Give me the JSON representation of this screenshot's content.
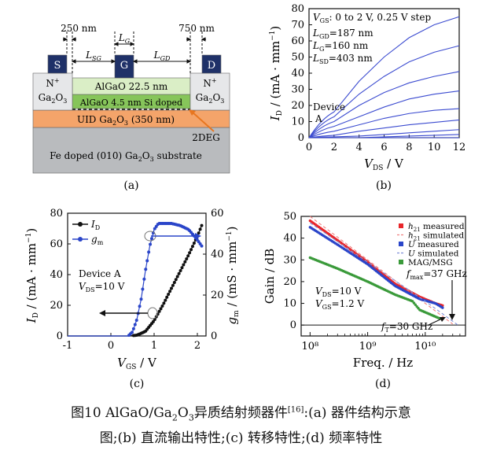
{
  "panel_a": {
    "dim_left": "250 nm",
    "dim_right": "750 nm",
    "label_lg": "L",
    "label_lg_sub": "G",
    "label_lsg": "L",
    "label_lsg_sub": "SG",
    "label_lgd": "L",
    "label_lgd_sub": "GD",
    "contact_s": "S",
    "contact_g": "G",
    "contact_d": "D",
    "n_plus": "N",
    "n_plus_sup": "+",
    "ga2o3": "Ga",
    "layer_algao_top": "AlGaO 22.5 nm",
    "layer_algao_doped": "AlGaO 4.5 nm Si doped",
    "layer_uid": "UID Ga",
    "layer_uid_tail": " (350 nm)",
    "label_2deg": "2DEG",
    "layer_substrate": "Fe doped (010) Ga",
    "layer_substrate_tail": " substrate",
    "panel_label": "(a)",
    "colors": {
      "contact": "#1f3168",
      "nplus": "#e6e7e9",
      "algao_top": "#daeec6",
      "algao_doped": "#86c55a",
      "uid": "#f4a46a",
      "substrate": "#b9bbbe",
      "arrow": "#e8761f"
    }
  },
  "panel_b_text": {
    "legend1": "V",
    "legend1_sub": "GS",
    "legend1_tail": ": 0 to 2 V, 0.25 V step",
    "legend2": "L",
    "legend2_sub": "GD",
    "legend2_tail": "=187 nm",
    "legend3": "L",
    "legend3_sub": "G",
    "legend3_tail": "=160 nm",
    "legend4": "L",
    "legend4_sub": "SD",
    "legend4_tail": "=403 nm",
    "device": "Device",
    "device_tail": "A",
    "panel_label": "(b)"
  },
  "panel_c_text": {
    "legend_id": "I",
    "legend_id_sub": "D",
    "legend_gm": "g",
    "legend_gm_sub": "m",
    "device": "Device A",
    "vds": "V",
    "vds_sub": "DS",
    "vds_tail": "=10 V",
    "panel_label": "(c)"
  },
  "panel_d_text": {
    "legend": [
      {
        "label": "h",
        "sub": "21",
        "tail": " measured",
        "style": "dot",
        "color": "#e8262a"
      },
      {
        "label": "h",
        "sub": "21",
        "tail": " simulated",
        "style": "dash",
        "color": "#f08080"
      },
      {
        "label": "U",
        "sub": "",
        "tail": " measured",
        "style": "dot",
        "color": "#2a45c9"
      },
      {
        "label": "U",
        "sub": "",
        "tail": " simulated",
        "style": "dash",
        "color": "#7f8fd8"
      },
      {
        "label": "MAG/MSG",
        "sub": "",
        "tail": "",
        "style": "dot",
        "color": "#3a9a3a"
      }
    ],
    "vds": "V",
    "vds_sub": "DS",
    "vds_tail": "=10 V",
    "vgs": "V",
    "vgs_sub": "GS",
    "vgs_tail": "=1.2 V",
    "fmax": "f",
    "fmax_sub": "max",
    "fmax_tail": "=37 GHz",
    "ft": "f",
    "ft_sub": "T",
    "ft_tail": "=30 GHz",
    "panel_label": "(d)"
  },
  "chart_data": [
    {
      "type": "line",
      "panel": "b",
      "title": "",
      "xlabel": "V_DS / V",
      "ylabel": "I_D / (mA · mm⁻¹)",
      "xlim": [
        0,
        12
      ],
      "ylim": [
        0,
        80
      ],
      "xticks": [
        "0",
        "2",
        "4",
        "6",
        "8",
        "10",
        "12"
      ],
      "yticks": [
        "0",
        "10",
        "20",
        "30",
        "40",
        "50",
        "60",
        "70",
        "80"
      ],
      "series": [
        {
          "name": "VGS=0 V",
          "x": [
            0,
            2,
            4,
            6,
            8,
            10,
            12
          ],
          "values": [
            0,
            0,
            0,
            0,
            0,
            0,
            0
          ]
        },
        {
          "name": "VGS=0.25 V",
          "x": [
            0,
            2,
            4,
            6,
            8,
            10,
            12
          ],
          "values": [
            0,
            0,
            0,
            0.5,
            1,
            1.5,
            2
          ]
        },
        {
          "name": "VGS=0.5 V",
          "x": [
            0,
            2,
            4,
            6,
            8,
            10,
            12
          ],
          "values": [
            0,
            0.5,
            1,
            2,
            3,
            4,
            5
          ]
        },
        {
          "name": "VGS=0.75 V",
          "x": [
            0,
            2,
            4,
            6,
            8,
            10,
            12
          ],
          "values": [
            0,
            1.5,
            4,
            6,
            8,
            9.5,
            11
          ]
        },
        {
          "name": "VGS=1.0 V",
          "x": [
            0,
            2,
            4,
            6,
            8,
            10,
            12
          ],
          "values": [
            0,
            4,
            8,
            12,
            15,
            17,
            18
          ]
        },
        {
          "name": "VGS=1.25 V",
          "x": [
            0,
            2,
            4,
            6,
            8,
            10,
            12
          ],
          "values": [
            0,
            7,
            13,
            19,
            24,
            27,
            29
          ]
        },
        {
          "name": "VGS=1.5 V",
          "x": [
            0,
            2,
            4,
            6,
            8,
            10,
            12
          ],
          "values": [
            0,
            10,
            20,
            28,
            34,
            38,
            41
          ]
        },
        {
          "name": "VGS=1.75 V",
          "x": [
            0,
            2,
            4,
            6,
            8,
            10,
            12
          ],
          "values": [
            0,
            13,
            27,
            38,
            47,
            53,
            57
          ]
        },
        {
          "name": "VGS=2.0 V",
          "x": [
            0,
            2,
            4,
            6,
            8,
            10,
            12
          ],
          "values": [
            0,
            16,
            35,
            50,
            62,
            70,
            75
          ]
        }
      ]
    },
    {
      "type": "scatter",
      "panel": "c",
      "title": "",
      "xlabel": "V_GS / V",
      "ylabel": "I_D / (mA · mm⁻¹)",
      "y2label": "g_m / (mS · mm⁻¹)",
      "xlim": [
        -1,
        2.2
      ],
      "ylim": [
        0,
        80
      ],
      "y2lim": [
        0,
        60
      ],
      "xticks": [
        "-1",
        "0",
        "1",
        "2"
      ],
      "yticks": [
        "0",
        "20",
        "40",
        "60",
        "80"
      ],
      "y2ticks": [
        "0",
        "20",
        "40",
        "60"
      ],
      "series": [
        {
          "name": "I_D",
          "axis": "left",
          "x": [
            -1,
            0.4,
            0.6,
            0.8,
            1.0,
            1.2,
            1.4,
            1.6,
            1.8,
            2.0,
            2.1
          ],
          "values": [
            0,
            0,
            0.5,
            3,
            10,
            20,
            31,
            42,
            53,
            65,
            72
          ]
        },
        {
          "name": "g_m",
          "axis": "right",
          "x": [
            -1,
            0.4,
            0.5,
            0.6,
            0.7,
            0.8,
            0.9,
            1.0,
            1.1,
            1.2,
            1.4,
            1.6,
            1.8,
            2.0,
            2.1
          ],
          "values": [
            0,
            0,
            2,
            8,
            18,
            32,
            44,
            52,
            55,
            55,
            55,
            54,
            52,
            47,
            44
          ]
        }
      ]
    },
    {
      "type": "scatter",
      "panel": "d",
      "title": "",
      "xlabel": "Freq. / Hz",
      "ylabel": "Gain / dB",
      "xscale": "log",
      "xlim": [
        70000000.0,
        50000000000.0
      ],
      "ylim": [
        -5,
        50
      ],
      "xticks": [
        "10⁸",
        "10⁹",
        "10¹⁰"
      ],
      "yticks": [
        "0",
        "10",
        "20",
        "30",
        "40",
        "50"
      ],
      "series": [
        {
          "name": "h21 measured",
          "x": [
            100000000.0,
            300000000.0,
            1000000000.0,
            3000000000.0,
            8000000000.0,
            15000000000.0,
            20000000000.0
          ],
          "values": [
            48,
            39,
            29,
            19,
            13,
            10,
            9
          ]
        },
        {
          "name": "h21 simulated",
          "x": [
            100000000.0,
            1000000000.0,
            10000000000.0,
            30000000000.0
          ],
          "values": [
            50,
            30,
            10,
            0.5
          ]
        },
        {
          "name": "U measured",
          "x": [
            100000000.0,
            300000000.0,
            1000000000.0,
            3000000000.0,
            8000000000.0,
            15000000000.0,
            20000000000.0
          ],
          "values": [
            45,
            37,
            28,
            18,
            12,
            10,
            8
          ]
        },
        {
          "name": "U simulated",
          "x": [
            100000000.0,
            1000000000.0,
            10000000000.0,
            37000000000.0
          ],
          "values": [
            47,
            29,
            11,
            0
          ]
        },
        {
          "name": "MAG/MSG",
          "x": [
            100000000.0,
            300000000.0,
            1000000000.0,
            3000000000.0,
            6000000000.0,
            8000000000.0,
            12000000000.0,
            18000000000.0
          ],
          "values": [
            31,
            26,
            20,
            14,
            11,
            7,
            5,
            3
          ]
        }
      ]
    }
  ],
  "caption": {
    "line1_a": "图10   AlGaO/Ga",
    "line1_b": "O",
    "line1_c": "异质结射频器件",
    "line1_ref": "[16]",
    "line1_d": ":(a) 器件结构示意",
    "line2": "图;(b) 直流输出特性;(c) 转移特性;(d) 频率特性"
  }
}
